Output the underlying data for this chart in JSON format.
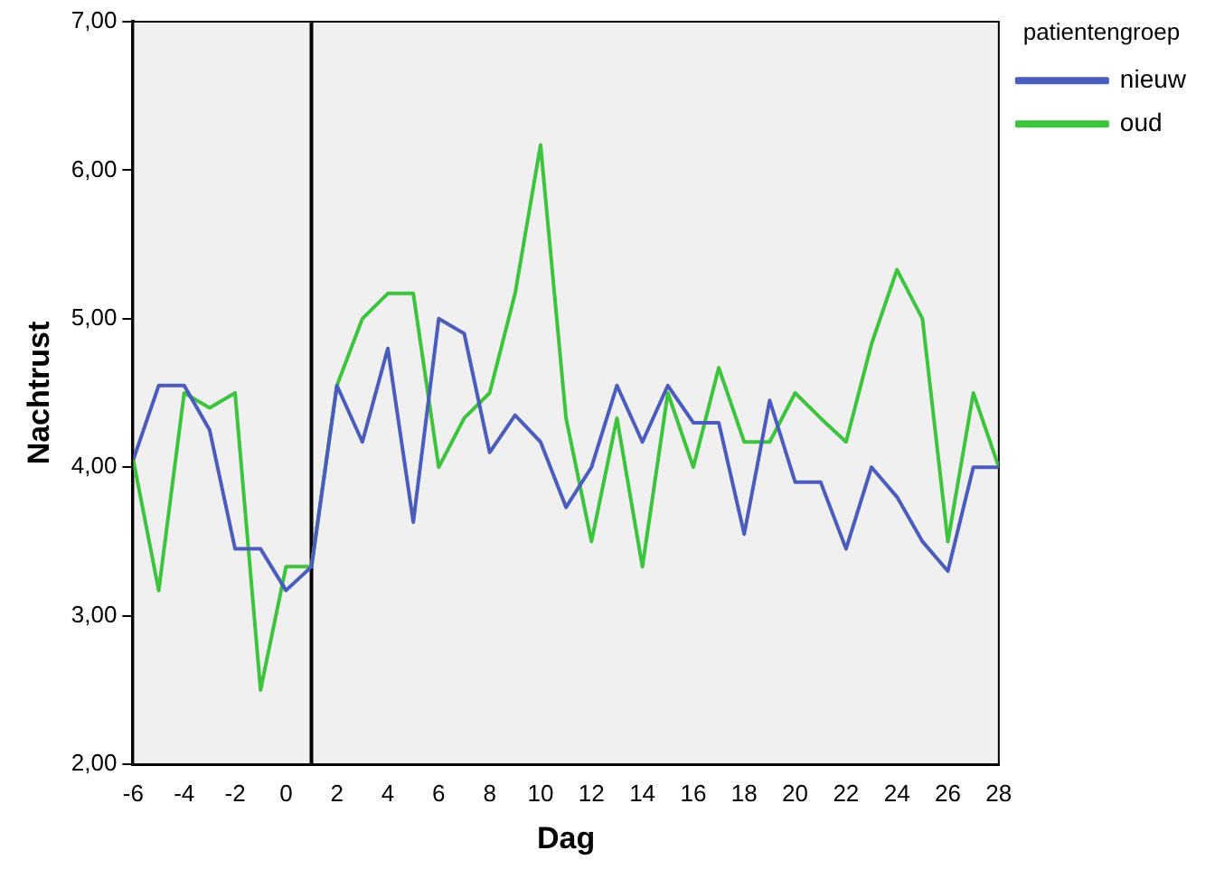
{
  "chart_data": {
    "type": "line",
    "xlabel": "Dag",
    "ylabel": "Nachtrust",
    "legend_title": "patientengroep",
    "legend": "top right",
    "grid": false,
    "marker": "none",
    "line_style": "solid",
    "x": [
      -6,
      -5,
      -4,
      -3,
      -2,
      -1,
      0,
      1,
      2,
      3,
      4,
      5,
      6,
      7,
      8,
      9,
      10,
      11,
      12,
      13,
      14,
      15,
      16,
      17,
      18,
      19,
      20,
      21,
      22,
      23,
      24,
      25,
      26,
      27,
      28
    ],
    "series": [
      {
        "name": "nieuw",
        "color": "#4a5cbd",
        "values": [
          4.05,
          4.55,
          4.55,
          4.25,
          3.45,
          3.45,
          3.17,
          3.33,
          4.55,
          4.17,
          4.8,
          3.63,
          5.0,
          4.9,
          4.1,
          4.35,
          4.17,
          3.73,
          4.0,
          4.55,
          4.17,
          4.55,
          4.3,
          4.3,
          3.55,
          4.45,
          3.9,
          3.9,
          3.45,
          4.0,
          3.8,
          3.5,
          3.3,
          4.0,
          4.0
        ]
      },
      {
        "name": "oud",
        "color": "#3cc43c",
        "values": [
          4.05,
          3.17,
          4.5,
          4.4,
          4.5,
          2.5,
          3.33,
          3.33,
          4.55,
          5.0,
          5.17,
          5.17,
          4.0,
          4.33,
          4.5,
          5.17,
          6.17,
          4.33,
          3.5,
          4.33,
          3.33,
          4.5,
          4.0,
          4.67,
          4.17,
          4.17,
          4.5,
          4.33,
          4.17,
          4.83,
          5.33,
          5.0,
          3.5,
          4.5,
          4.0
        ]
      }
    ],
    "xlim": [
      -6,
      28
    ],
    "xticks": [
      -6,
      -4,
      -2,
      0,
      2,
      4,
      6,
      8,
      10,
      12,
      14,
      16,
      18,
      20,
      22,
      24,
      26,
      28
    ],
    "ylim": [
      2,
      7
    ],
    "yticks": [
      {
        "value": 2,
        "label": "2,00"
      },
      {
        "value": 3,
        "label": "3,00"
      },
      {
        "value": 4,
        "label": "4,00"
      },
      {
        "value": 5,
        "label": "5,00"
      },
      {
        "value": 6,
        "label": "6,00"
      },
      {
        "value": 7,
        "label": "7,00"
      }
    ],
    "ref_lines": [
      {
        "axis": "x",
        "value": 1,
        "color": "#000000"
      }
    ]
  }
}
